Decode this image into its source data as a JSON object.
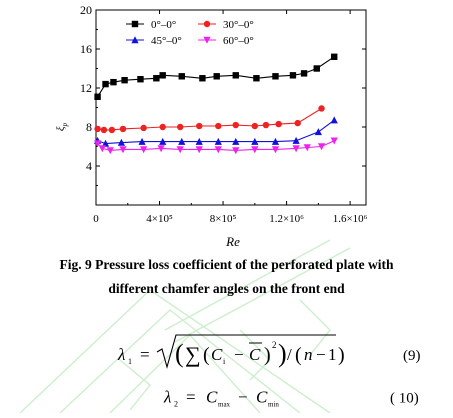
{
  "chart_data": {
    "type": "line",
    "xlabel": "Re",
    "ylabel": "ξ_p",
    "xlim": [
      0,
      1700000
    ],
    "ylim": [
      0,
      20
    ],
    "x_ticks": [
      {
        "value": 0,
        "label": "0"
      },
      {
        "value": 400000,
        "label": "4×10⁵"
      },
      {
        "value": 800000,
        "label": "8×10⁵"
      },
      {
        "value": 1200000,
        "label": "1.2×10⁶"
      },
      {
        "value": 1600000,
        "label": "1.6×10⁶"
      }
    ],
    "y_ticks": [
      {
        "value": 4,
        "label": "4"
      },
      {
        "value": 8,
        "label": "8"
      },
      {
        "value": 12,
        "label": "12"
      },
      {
        "value": 16,
        "label": "16"
      },
      {
        "value": 20,
        "label": "20"
      }
    ],
    "legend_position": "top-left",
    "series": [
      {
        "name": "0°–0°",
        "color": "#000000",
        "marker": "square",
        "points": [
          [
            10000,
            11.1
          ],
          [
            60000,
            12.4
          ],
          [
            110000,
            12.6
          ],
          [
            180000,
            12.8
          ],
          [
            280000,
            12.9
          ],
          [
            380000,
            13.0
          ],
          [
            420000,
            13.3
          ],
          [
            540000,
            13.2
          ],
          [
            670000,
            13.0
          ],
          [
            760000,
            13.2
          ],
          [
            880000,
            13.3
          ],
          [
            1010000,
            13.0
          ],
          [
            1130000,
            13.2
          ],
          [
            1240000,
            13.3
          ],
          [
            1310000,
            13.5
          ],
          [
            1390000,
            14.0
          ],
          [
            1500000,
            15.2
          ]
        ]
      },
      {
        "name": "30°–0°",
        "color": "#ee2222",
        "marker": "circle",
        "points": [
          [
            10000,
            7.8
          ],
          [
            50000,
            7.7
          ],
          [
            100000,
            7.7
          ],
          [
            170000,
            7.8
          ],
          [
            300000,
            7.9
          ],
          [
            420000,
            8.0
          ],
          [
            530000,
            8.0
          ],
          [
            650000,
            8.1
          ],
          [
            770000,
            8.1
          ],
          [
            880000,
            8.2
          ],
          [
            1000000,
            8.1
          ],
          [
            1070000,
            8.2
          ],
          [
            1150000,
            8.3
          ],
          [
            1270000,
            8.4
          ],
          [
            1420000,
            9.9
          ]
        ]
      },
      {
        "name": "45°–0°",
        "color": "#1111dd",
        "marker": "triangle-up",
        "points": [
          [
            10000,
            6.6
          ],
          [
            60000,
            6.3
          ],
          [
            160000,
            6.4
          ],
          [
            290000,
            6.5
          ],
          [
            420000,
            6.5
          ],
          [
            540000,
            6.5
          ],
          [
            650000,
            6.5
          ],
          [
            770000,
            6.5
          ],
          [
            880000,
            6.5
          ],
          [
            1000000,
            6.5
          ],
          [
            1130000,
            6.5
          ],
          [
            1260000,
            6.6
          ],
          [
            1400000,
            7.5
          ],
          [
            1500000,
            8.7
          ]
        ]
      },
      {
        "name": "60°–0°",
        "color": "#ee22ee",
        "marker": "triangle-down",
        "points": [
          [
            10000,
            6.3
          ],
          [
            40000,
            5.8
          ],
          [
            90000,
            5.6
          ],
          [
            170000,
            5.7
          ],
          [
            300000,
            5.7
          ],
          [
            410000,
            5.8
          ],
          [
            530000,
            5.7
          ],
          [
            650000,
            5.7
          ],
          [
            770000,
            5.7
          ],
          [
            880000,
            5.6
          ],
          [
            1000000,
            5.7
          ],
          [
            1130000,
            5.7
          ],
          [
            1260000,
            5.8
          ],
          [
            1330000,
            5.9
          ],
          [
            1420000,
            6.0
          ],
          [
            1500000,
            6.6
          ]
        ]
      }
    ]
  },
  "caption": {
    "line1": "Fig. 9    Pressure loss coefficient of the perforated plate with",
    "line2": "different chamfer angles on the front end"
  },
  "equations": {
    "eq9_number": "(9)",
    "eq10_number": "( 10)"
  },
  "watermark_color": "#c8ecc8"
}
